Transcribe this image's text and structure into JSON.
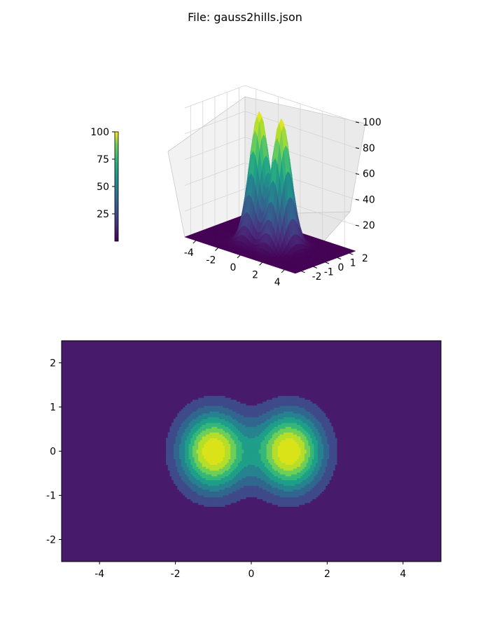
{
  "figure": {
    "title": "File: gauss2hills.json"
  },
  "chart_data": [
    {
      "type": "surface",
      "x_range": [
        -5,
        5
      ],
      "y_range": [
        -2.5,
        2.5
      ],
      "z_range": [
        0,
        100
      ],
      "x_ticks": [
        "-4",
        "-2",
        "0",
        "2",
        "4"
      ],
      "y_ticks": [
        "-2",
        "-1",
        "0",
        "1",
        "2"
      ],
      "z_ticks": [
        "20",
        "40",
        "60",
        "80",
        "100"
      ],
      "peaks": [
        {
          "x": -1,
          "y": 0,
          "z": 100
        },
        {
          "x": 1,
          "y": 0,
          "z": 100
        }
      ],
      "peak_width": 0.6,
      "colormap": "viridis",
      "colorbar": {
        "range": [
          0,
          100
        ],
        "ticks": [
          "25",
          "50",
          "75",
          "100"
        ]
      },
      "grid": true
    },
    {
      "type": "contourf",
      "x_range": [
        -5,
        5
      ],
      "y_range": [
        -2.5,
        2.5
      ],
      "x_ticks": [
        "-4",
        "-2",
        "0",
        "2",
        "4"
      ],
      "y_ticks": [
        "-2",
        "-1",
        "0",
        "1",
        "2"
      ],
      "level_colors": [
        "#481a6c",
        "#3e4a89",
        "#31678e",
        "#26828e",
        "#1f9e89",
        "#35b779",
        "#6ece58",
        "#b5de2b",
        "#dae319"
      ],
      "grid": false
    }
  ]
}
